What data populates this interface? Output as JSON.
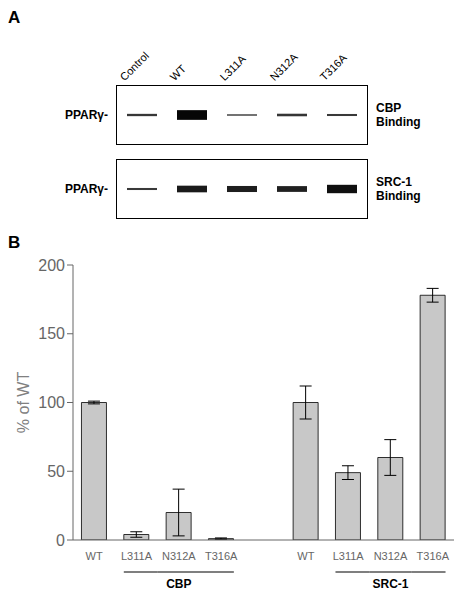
{
  "chart_data": [
    {
      "type": "gel",
      "title": "A",
      "categories": [
        "Control",
        "WT",
        "L311A",
        "N312A",
        "T316A"
      ],
      "ylabel": "PPARγ-",
      "series": [
        {
          "name": "CBP\nBinding",
          "values": [
            0.15,
            1.0,
            0.05,
            0.18,
            0.12
          ]
        },
        {
          "name": "SRC-1\nBinding",
          "values": [
            0.12,
            0.65,
            0.58,
            0.55,
            0.85
          ]
        }
      ]
    },
    {
      "type": "bar",
      "title": "B",
      "categories": [
        "WT",
        "L311A",
        "N312A",
        "T316A",
        null,
        "WT",
        "L311A",
        "N312A",
        "T316A"
      ],
      "values": [
        100,
        4,
        20,
        1,
        null,
        100,
        49,
        60,
        178
      ],
      "errors": [
        1,
        2,
        17,
        0.5,
        null,
        12,
        5,
        13,
        5
      ],
      "color": "#c8c8c8",
      "ylabel": "% of WT",
      "ylim": [
        0,
        200
      ],
      "yticks": [
        0,
        50,
        100,
        150,
        200
      ],
      "annotations": [
        "CBP",
        "SRC-1"
      ],
      "grid": false
    }
  ]
}
